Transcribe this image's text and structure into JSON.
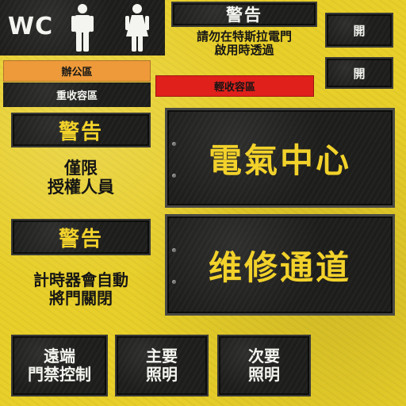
{
  "wc": {
    "label": "WC",
    "icons": [
      "male-figure-icon",
      "female-figure-icon"
    ]
  },
  "tesla_warning": {
    "title": "警告",
    "text": "請勿在特斯拉電門\n啟用時透過"
  },
  "open_buttons": [
    "開",
    "開"
  ],
  "zones": {
    "office": "辦公區",
    "heavy_containment": "重收容區",
    "light_containment": "輕收容區"
  },
  "warning_authorized": {
    "title": "警告",
    "text": "僅限\n授權人員"
  },
  "warning_timer": {
    "title": "警告",
    "text": "計時器會自動\n將門關閉"
  },
  "big_signs": {
    "electric_center": "電氣中心",
    "maintenance": "维修通道"
  },
  "bottom_buttons": {
    "remote_door": "遠端\n門禁控制",
    "main_light": "主要\n照明",
    "secondary_light": "次要\n照明"
  },
  "colors": {
    "background_yellow": "#e8cf2a",
    "panel_dark": "#1d1d1b",
    "office_orange": "#ee9a3a",
    "light_zone_red": "#e0201b",
    "sign_text_yellow": "#f2d22b"
  }
}
